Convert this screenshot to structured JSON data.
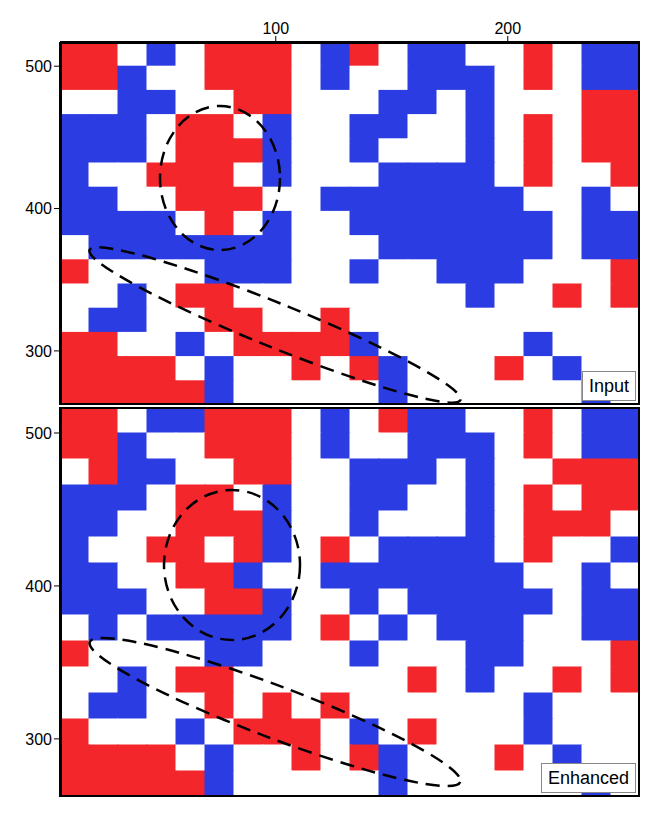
{
  "chart_data": [
    {
      "type": "heatmap",
      "label": "Input",
      "xlim": [
        7,
        257
      ],
      "ylim": [
        262,
        517
      ],
      "xticks": [
        100,
        200
      ],
      "yticks": [
        300,
        400,
        500
      ],
      "tick_labels": true,
      "x": [
        13.25,
        25.75,
        38.25,
        50.75,
        63.25,
        75.75,
        88.25,
        100.75,
        113.25,
        125.75,
        138.25,
        150.75,
        163.25,
        175.75,
        188.25,
        200.75,
        213.25,
        225.75,
        238.25,
        250.75
      ],
      "y": [
        508.5,
        491.5,
        474.5,
        457.5,
        440.5,
        423.5,
        406.5,
        389.5,
        372.5,
        355.5,
        338.5,
        321.5,
        304.5,
        287.5,
        270.5
      ],
      "cells": [
        [
          1,
          1,
          0,
          -1,
          0,
          1,
          1,
          1,
          0,
          -1,
          1,
          0,
          -1,
          -1,
          0,
          0,
          1,
          0,
          -1,
          -1
        ],
        [
          1,
          1,
          -1,
          0,
          0,
          1,
          1,
          1,
          0,
          -1,
          0,
          0,
          -1,
          -1,
          -1,
          0,
          1,
          0,
          -1,
          -1
        ],
        [
          0,
          0,
          -1,
          -1,
          0,
          0,
          1,
          1,
          0,
          0,
          0,
          -1,
          -1,
          0,
          -1,
          0,
          0,
          0,
          1,
          1
        ],
        [
          -1,
          -1,
          -1,
          0,
          1,
          1,
          0,
          -1,
          0,
          0,
          -1,
          -1,
          0,
          0,
          -1,
          0,
          1,
          0,
          1,
          1
        ],
        [
          -1,
          -1,
          -1,
          0,
          1,
          1,
          1,
          -1,
          0,
          0,
          -1,
          0,
          0,
          0,
          -1,
          0,
          1,
          0,
          1,
          1
        ],
        [
          -1,
          0,
          0,
          1,
          1,
          1,
          0,
          -1,
          0,
          0,
          0,
          -1,
          -1,
          -1,
          -1,
          0,
          1,
          0,
          0,
          1
        ],
        [
          -1,
          -1,
          0,
          0,
          1,
          1,
          1,
          0,
          0,
          -1,
          -1,
          -1,
          -1,
          -1,
          -1,
          -1,
          0,
          0,
          -1,
          0
        ],
        [
          -1,
          -1,
          -1,
          -1,
          0,
          1,
          0,
          -1,
          0,
          0,
          -1,
          -1,
          -1,
          -1,
          -1,
          -1,
          -1,
          0,
          -1,
          -1
        ],
        [
          0,
          -1,
          -1,
          -1,
          -1,
          -1,
          -1,
          -1,
          0,
          0,
          0,
          -1,
          -1,
          -1,
          -1,
          -1,
          -1,
          0,
          -1,
          -1
        ],
        [
          1,
          0,
          0,
          0,
          0,
          -1,
          -1,
          -1,
          0,
          0,
          -1,
          0,
          0,
          -1,
          -1,
          -1,
          0,
          0,
          0,
          1
        ],
        [
          0,
          0,
          -1,
          0,
          1,
          1,
          0,
          0,
          0,
          0,
          0,
          0,
          0,
          0,
          -1,
          0,
          0,
          1,
          0,
          1
        ],
        [
          0,
          -1,
          -1,
          0,
          0,
          1,
          1,
          0,
          0,
          1,
          0,
          0,
          0,
          0,
          0,
          0,
          0,
          0,
          0,
          0
        ],
        [
          1,
          1,
          0,
          0,
          -1,
          0,
          1,
          1,
          1,
          1,
          -1,
          0,
          0,
          0,
          0,
          0,
          -1,
          0,
          0,
          0
        ],
        [
          1,
          1,
          1,
          1,
          0,
          -1,
          0,
          0,
          1,
          0,
          1,
          -1,
          0,
          0,
          0,
          1,
          0,
          -1,
          0,
          0
        ],
        [
          1,
          1,
          1,
          1,
          1,
          -1,
          0,
          0,
          0,
          0,
          0,
          -1,
          0,
          0,
          0,
          0,
          0,
          0,
          -1,
          0
        ]
      ]
    },
    {
      "type": "heatmap",
      "label": "Enhanced",
      "xlim": [
        7,
        257
      ],
      "ylim": [
        262,
        517
      ],
      "yticks": [
        300,
        400,
        500
      ],
      "tick_labels": "y",
      "x": [
        13.25,
        25.75,
        38.25,
        50.75,
        63.25,
        75.75,
        88.25,
        100.75,
        113.25,
        125.75,
        138.25,
        150.75,
        163.25,
        175.75,
        188.25,
        200.75,
        213.25,
        225.75,
        238.25,
        250.75
      ],
      "y": [
        508.5,
        491.5,
        474.5,
        457.5,
        440.5,
        423.5,
        406.5,
        389.5,
        372.5,
        355.5,
        338.5,
        321.5,
        304.5,
        287.5,
        270.5
      ],
      "cells": [
        [
          1,
          1,
          0,
          -1,
          -1,
          1,
          1,
          1,
          0,
          -1,
          0,
          1,
          -1,
          -1,
          0,
          0,
          1,
          0,
          -1,
          -1
        ],
        [
          1,
          1,
          -1,
          0,
          0,
          1,
          1,
          1,
          0,
          -1,
          0,
          0,
          -1,
          -1,
          -1,
          0,
          1,
          0,
          -1,
          -1
        ],
        [
          0,
          1,
          -1,
          -1,
          0,
          0,
          1,
          1,
          0,
          0,
          -1,
          -1,
          -1,
          0,
          -1,
          0,
          0,
          1,
          1,
          1
        ],
        [
          -1,
          -1,
          -1,
          0,
          1,
          1,
          0,
          -1,
          0,
          0,
          -1,
          -1,
          0,
          0,
          -1,
          0,
          1,
          0,
          1,
          1
        ],
        [
          -1,
          -1,
          0,
          0,
          1,
          1,
          1,
          -1,
          0,
          0,
          -1,
          0,
          0,
          0,
          -1,
          0,
          1,
          1,
          1,
          0
        ],
        [
          -1,
          0,
          0,
          1,
          1,
          0,
          1,
          -1,
          0,
          1,
          0,
          -1,
          -1,
          -1,
          -1,
          0,
          1,
          0,
          0,
          -1
        ],
        [
          -1,
          -1,
          0,
          0,
          1,
          1,
          -1,
          0,
          0,
          -1,
          -1,
          -1,
          -1,
          -1,
          -1,
          -1,
          0,
          0,
          -1,
          0
        ],
        [
          -1,
          -1,
          -1,
          0,
          0,
          1,
          1,
          -1,
          0,
          0,
          -1,
          0,
          -1,
          -1,
          -1,
          -1,
          -1,
          0,
          -1,
          -1
        ],
        [
          0,
          -1,
          0,
          -1,
          -1,
          -1,
          -1,
          -1,
          0,
          1,
          0,
          -1,
          0,
          -1,
          -1,
          -1,
          0,
          0,
          -1,
          -1
        ],
        [
          1,
          0,
          0,
          0,
          0,
          -1,
          -1,
          0,
          0,
          0,
          -1,
          0,
          0,
          0,
          -1,
          -1,
          0,
          0,
          0,
          1
        ],
        [
          0,
          0,
          -1,
          0,
          1,
          1,
          0,
          0,
          0,
          0,
          0,
          0,
          1,
          0,
          -1,
          0,
          0,
          1,
          0,
          1
        ],
        [
          0,
          -1,
          -1,
          0,
          0,
          1,
          0,
          1,
          0,
          1,
          0,
          0,
          0,
          0,
          0,
          0,
          -1,
          0,
          0,
          0
        ],
        [
          1,
          0,
          0,
          0,
          -1,
          0,
          1,
          1,
          1,
          0,
          -1,
          0,
          1,
          0,
          0,
          0,
          -1,
          0,
          0,
          0
        ],
        [
          1,
          1,
          1,
          1,
          0,
          -1,
          0,
          0,
          1,
          0,
          1,
          -1,
          0,
          0,
          0,
          1,
          0,
          -1,
          0,
          0
        ],
        [
          1,
          1,
          1,
          1,
          1,
          -1,
          0,
          0,
          0,
          0,
          0,
          -1,
          0,
          0,
          0,
          0,
          0,
          0,
          -1,
          0
        ]
      ]
    }
  ]
}
